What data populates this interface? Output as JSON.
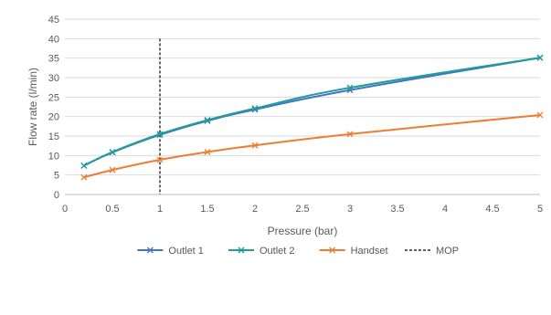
{
  "chart_data": {
    "type": "line",
    "title": "",
    "xlabel": "Pressure (bar)",
    "ylabel": "Flow rate (l/min)",
    "xlim": [
      0,
      5
    ],
    "ylim": [
      0,
      45
    ],
    "x_ticks": [
      "0",
      "0.5",
      "1",
      "1.5",
      "2",
      "2.5",
      "3",
      "3.5",
      "4",
      "4.5",
      "5"
    ],
    "y_ticks": [
      "0",
      "5",
      "10",
      "15",
      "20",
      "25",
      "30",
      "35",
      "40",
      "45"
    ],
    "grid": "horizontal",
    "legend_position": "bottom",
    "series": [
      {
        "name": "Outlet 1",
        "color": "#4472C4",
        "marker": "x",
        "x": [
          0.2,
          0.5,
          1,
          1.5,
          2,
          3,
          5
        ],
        "y": [
          7.4,
          10.8,
          15.3,
          18.9,
          21.8,
          26.8,
          35.1
        ]
      },
      {
        "name": "Outlet 2",
        "color": "#1F9E9A",
        "marker": "x",
        "x": [
          0.2,
          0.5,
          1,
          1.5,
          2,
          3,
          5
        ],
        "y": [
          7.4,
          10.9,
          15.5,
          19.1,
          22.1,
          27.4,
          35.1
        ]
      },
      {
        "name": "Handset",
        "color": "#ED7D31",
        "marker": "x",
        "x": [
          0.2,
          0.5,
          1,
          1.5,
          2,
          3,
          5
        ],
        "y": [
          4.4,
          6.3,
          8.9,
          10.9,
          12.6,
          15.5,
          20.4
        ]
      }
    ],
    "reference_lines": [
      {
        "name": "MOP",
        "x": 1,
        "y_range": [
          0,
          40
        ],
        "style": "dashed",
        "color": "#000000"
      }
    ]
  }
}
